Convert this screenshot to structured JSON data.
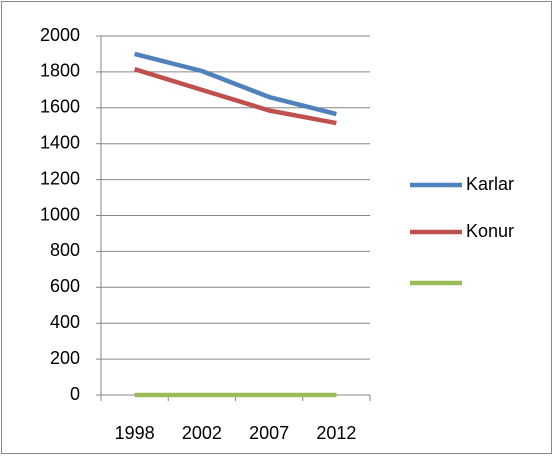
{
  "chart_data": {
    "type": "line",
    "categories": [
      "1998",
      "2002",
      "2007",
      "2012"
    ],
    "series": [
      {
        "name": "Karlar",
        "color": "#4f81bd",
        "values": [
          1900,
          1805,
          1660,
          1565
        ]
      },
      {
        "name": "Konur",
        "color": "#c0504d",
        "values": [
          1815,
          1700,
          1585,
          1515
        ]
      },
      {
        "color": "#9bbb59",
        "values": [
          0,
          0,
          0,
          0
        ]
      }
    ],
    "ylim": [
      0,
      2000
    ],
    "yticks": [
      0,
      200,
      400,
      600,
      800,
      1000,
      1200,
      1400,
      1600,
      1800,
      2000
    ],
    "grid": true,
    "legend": "right"
  }
}
